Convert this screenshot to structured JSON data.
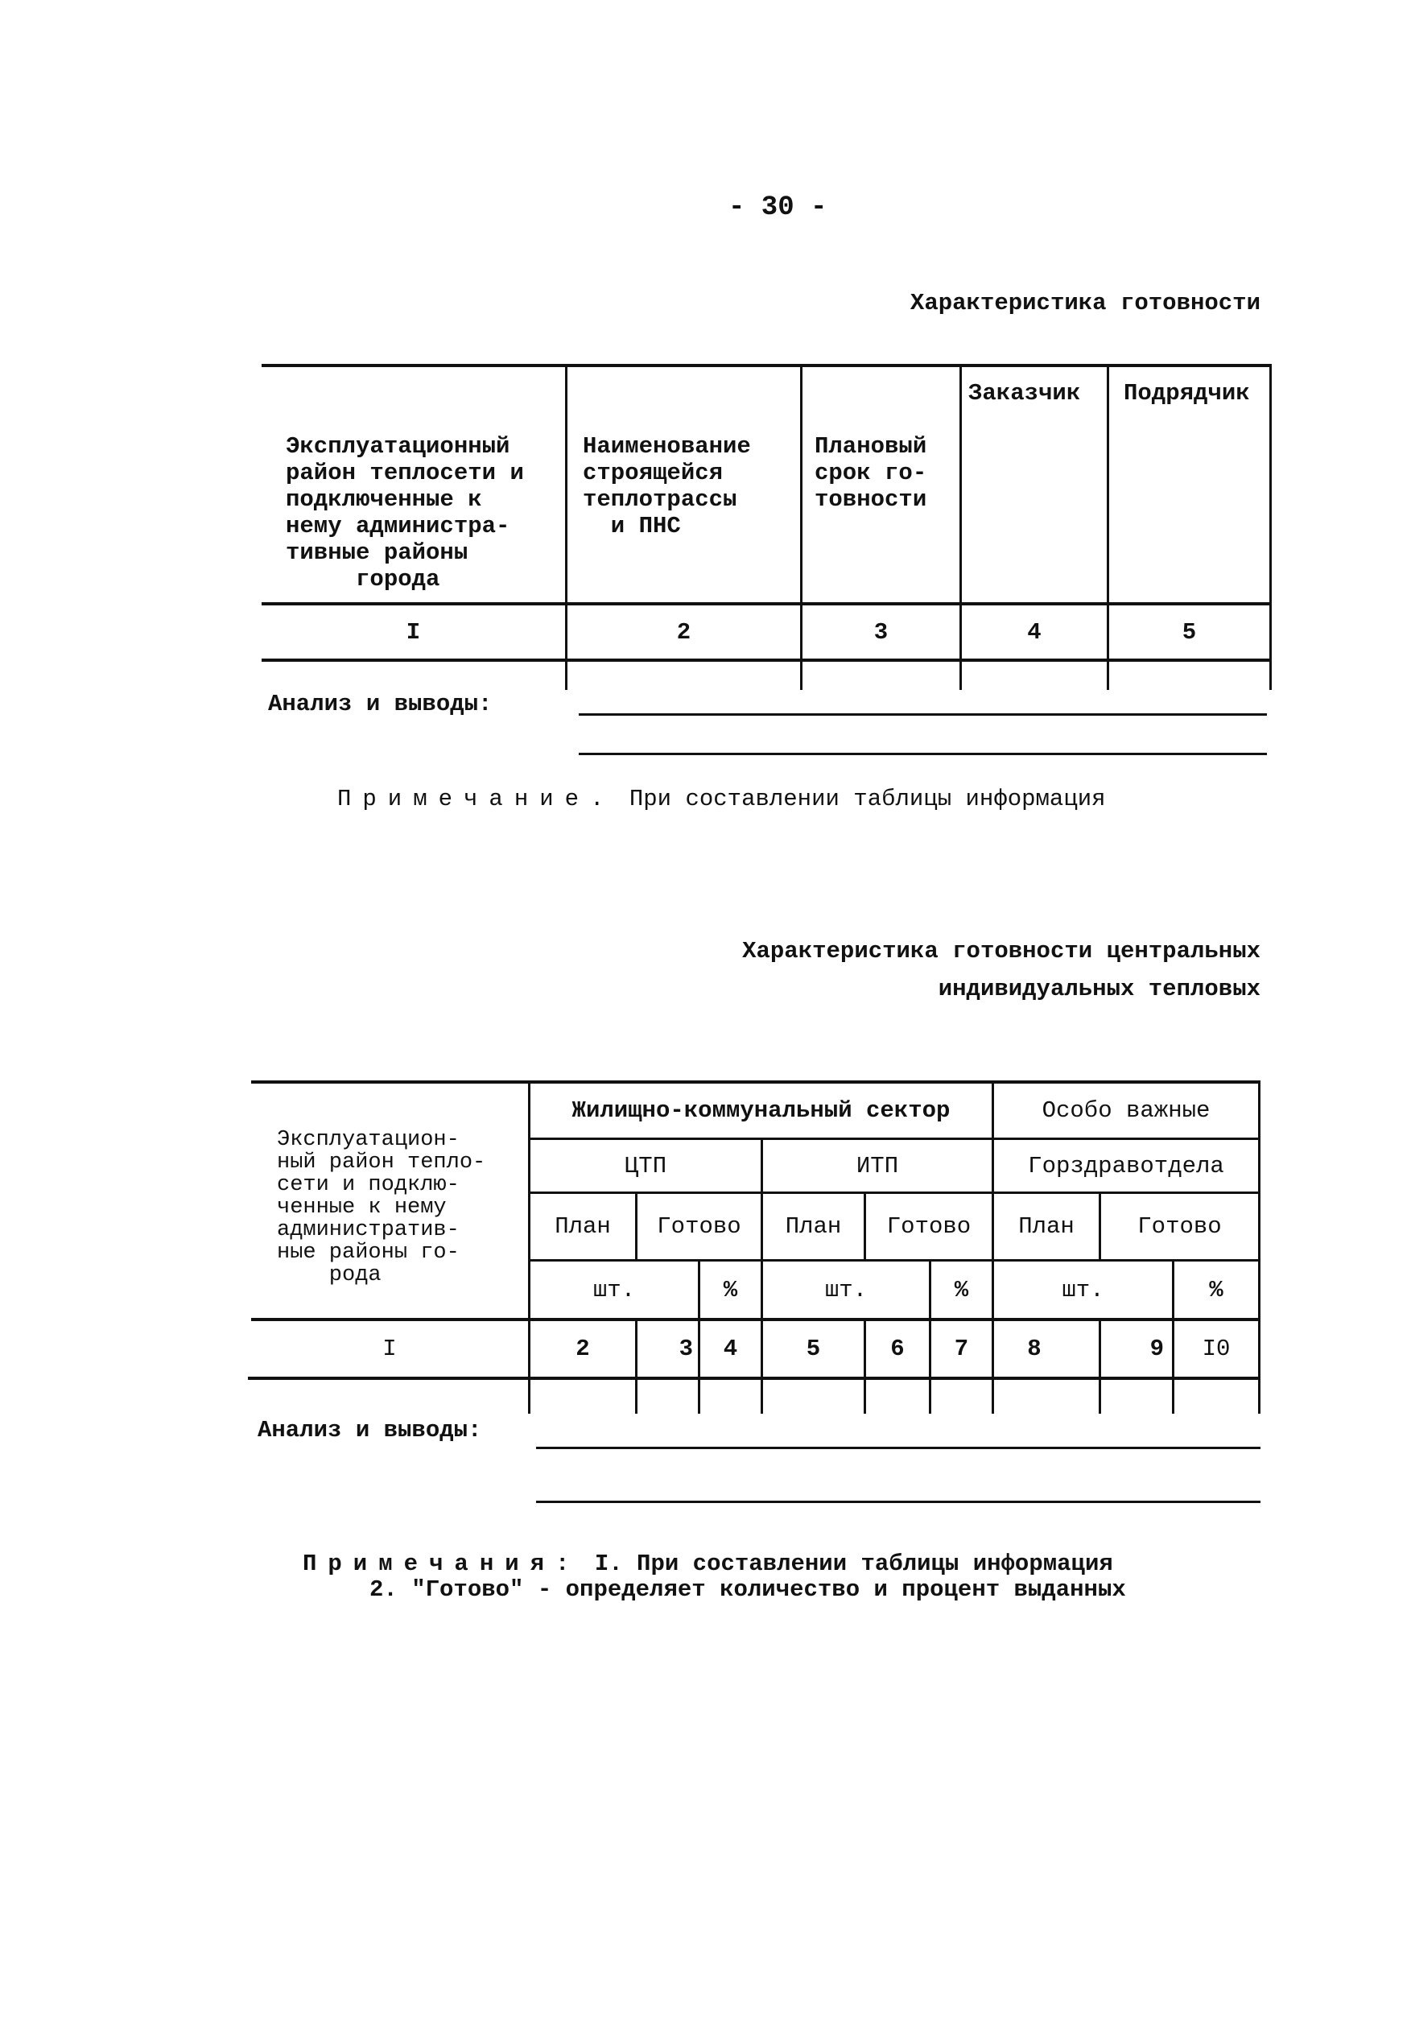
{
  "page_number": "- 30 -",
  "section1": {
    "title": "Характеристика готовности",
    "headers": [
      [
        "Эксплуатационный",
        "район теплосети и",
        "подключенные к",
        "нему администра-",
        "тивные районы",
        "     города"
      ],
      [
        "Наименование",
        "строящейся",
        "теплотрассы",
        "  и ПНС"
      ],
      [
        "Плановый",
        "срок го-",
        "товности"
      ],
      [
        "Заказчик"
      ],
      [
        "Подрядчик"
      ]
    ],
    "column_numbers": [
      "I",
      "2",
      "3",
      "4",
      "5"
    ],
    "analysis_label": "Анализ и выводы:",
    "note_label": "Примечание.",
    "note_text": "При составлении таблицы информация"
  },
  "section2": {
    "title_line1": "Характеристика готовности центральных",
    "title_line2": "индивидуальных тепловых",
    "first_header": [
      "Эксплуатацион-",
      "ный район тепло-",
      "сети и подклю-",
      "ченные к нему",
      "административ-",
      "ные районы го-",
      "    рода"
    ],
    "group_housing": "Жилищно-коммунальный сектор",
    "group_special": "Особо важные",
    "sub_ctp": "ЦТП",
    "sub_itp": "ИТП",
    "sub_health": "Горздравотдела",
    "plan": "План",
    "ready": "Готово",
    "unit_pcs": "шт.",
    "unit_pct": "%",
    "column_numbers": [
      "I",
      "2",
      "3",
      "4",
      "5",
      "6",
      "7",
      "8",
      "9",
      "I0"
    ],
    "analysis_label": "Анализ и выводы:",
    "notes_label": "Примечания:",
    "note1": "I. При составлении таблицы информация",
    "note2": "2. \"Готово\" - определяет количество и процент выданных"
  }
}
